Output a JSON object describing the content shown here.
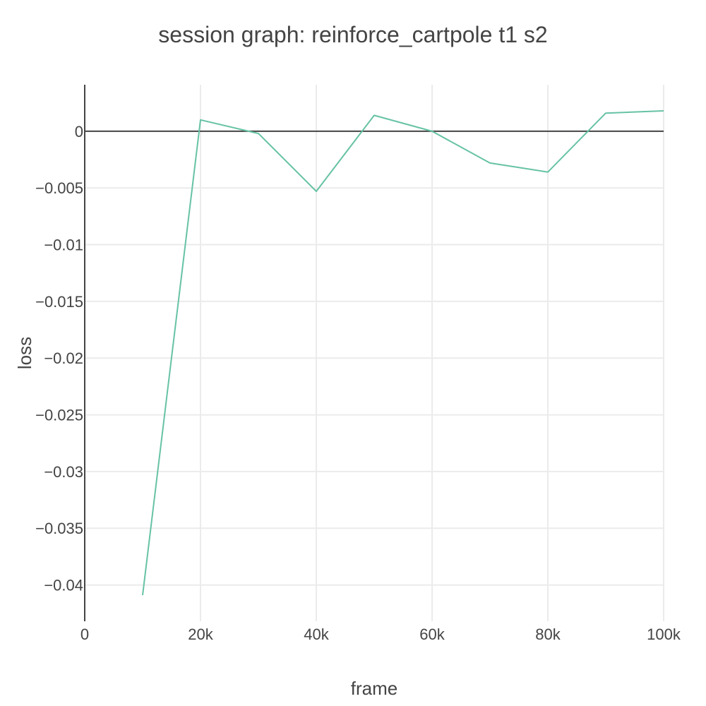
{
  "chart_data": {
    "type": "line",
    "title": "session graph: reinforce_cartpole t1 s2",
    "xlabel": "frame",
    "ylabel": "loss",
    "xlim": [
      0,
      100000
    ],
    "ylim": [
      -0.0432,
      0.0041
    ],
    "grid": true,
    "x_ticks": [
      {
        "value": 0,
        "label": "0"
      },
      {
        "value": 20000,
        "label": "20k"
      },
      {
        "value": 40000,
        "label": "40k"
      },
      {
        "value": 60000,
        "label": "60k"
      },
      {
        "value": 80000,
        "label": "80k"
      },
      {
        "value": 100000,
        "label": "100k"
      }
    ],
    "y_ticks": [
      {
        "value": 0,
        "label": "0"
      },
      {
        "value": -0.005,
        "label": "−0.005"
      },
      {
        "value": -0.01,
        "label": "−0.01"
      },
      {
        "value": -0.015,
        "label": "−0.015"
      },
      {
        "value": -0.02,
        "label": "−0.02"
      },
      {
        "value": -0.025,
        "label": "−0.025"
      },
      {
        "value": -0.03,
        "label": "−0.03"
      },
      {
        "value": -0.035,
        "label": "−0.035"
      },
      {
        "value": -0.04,
        "label": "−0.04"
      }
    ],
    "series": [
      {
        "color": "#66c2a5",
        "x": [
          10000,
          20000,
          30000,
          40000,
          50000,
          60000,
          70000,
          80000,
          90000,
          100000
        ],
        "y": [
          -0.0409,
          0.001,
          -0.0002,
          -0.0053,
          0.0014,
          0.0,
          -0.0028,
          -0.0036,
          0.0016,
          0.0018
        ]
      }
    ]
  }
}
